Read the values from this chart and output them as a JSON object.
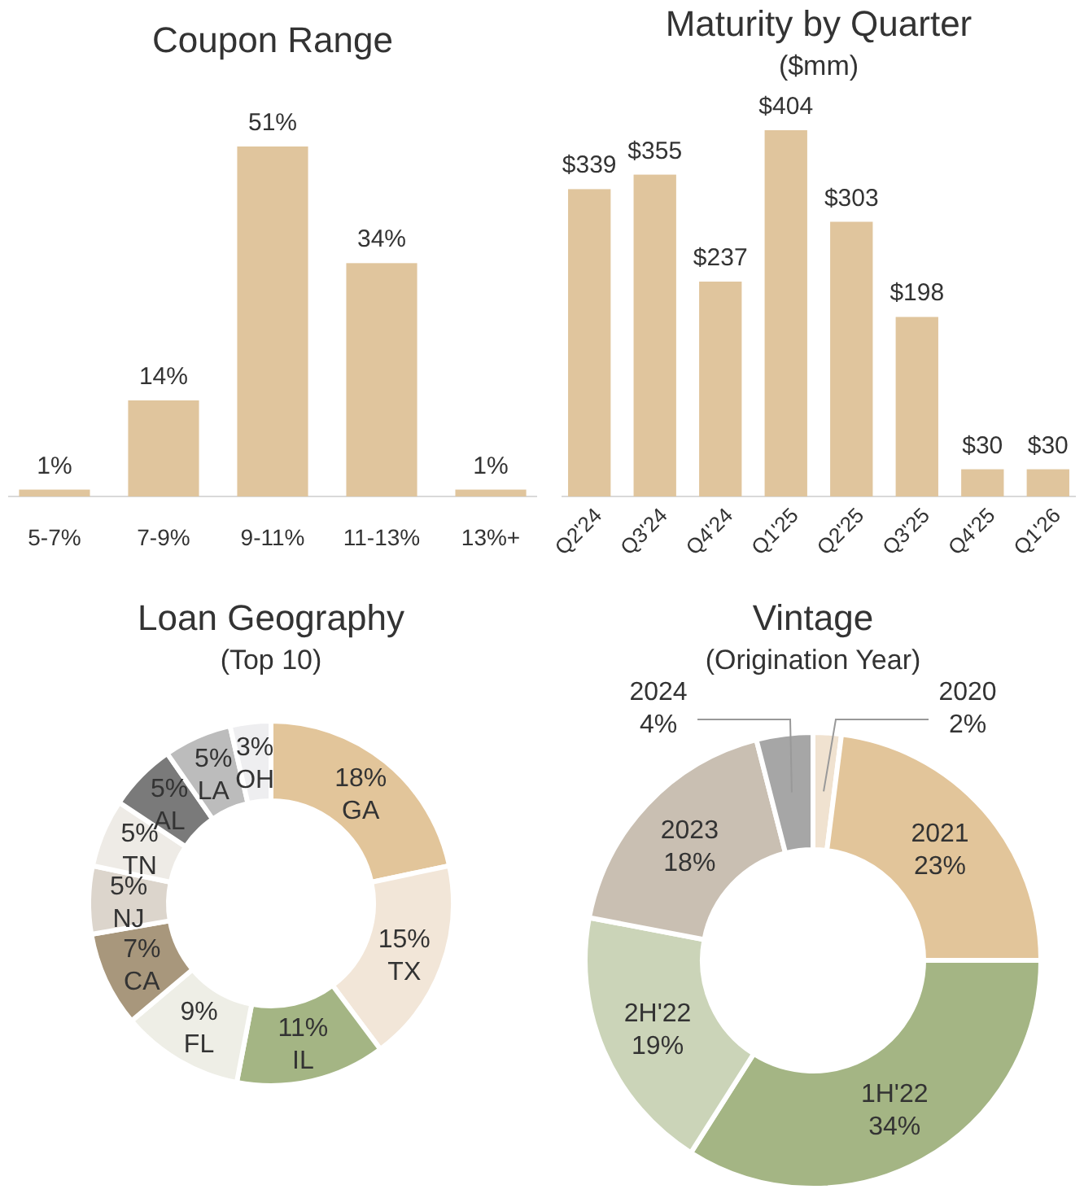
{
  "chart_data": [
    {
      "type": "bar",
      "title": "Coupon Range",
      "categories": [
        "5-7%",
        "7-9%",
        "9-11%",
        "11-13%",
        "13%+"
      ],
      "values": [
        1,
        14,
        51,
        34,
        1
      ],
      "value_labels": [
        "1%",
        "14%",
        "51%",
        "34%",
        "1%"
      ],
      "color": "#e0c59d"
    },
    {
      "type": "bar",
      "title": "Maturity by Quarter",
      "subtitle": "($mm)",
      "categories": [
        "Q2'24",
        "Q3'24",
        "Q4'24",
        "Q1'25",
        "Q2'25",
        "Q3'25",
        "Q4'25",
        "Q1'26"
      ],
      "values": [
        339,
        355,
        237,
        404,
        303,
        198,
        30,
        30
      ],
      "value_labels": [
        "$339",
        "$355",
        "$237",
        "$404",
        "$303",
        "$198",
        "$30",
        "$30"
      ],
      "color": "#e0c59d"
    },
    {
      "type": "donut",
      "title": "Loan Geography",
      "subtitle": "(Top 10)",
      "categories": [
        "GA",
        "TX",
        "IL",
        "FL",
        "CA",
        "NJ",
        "TN",
        "AL",
        "LA",
        "OH"
      ],
      "values": [
        18,
        15,
        11,
        9,
        7,
        5,
        5,
        5,
        5,
        3
      ],
      "value_labels": [
        "18%",
        "15%",
        "11%",
        "9%",
        "7%",
        "5%",
        "5%",
        "5%",
        "5%",
        "3%"
      ],
      "colors": [
        "#e2c59a",
        "#f2e6d8",
        "#a4b584",
        "#eeeee6",
        "#a8977c",
        "#dcd5cc",
        "#eeebe6",
        "#7a7a7a",
        "#bcbcbc",
        "#eeeef0"
      ]
    },
    {
      "type": "donut",
      "title": "Vintage",
      "subtitle": "(Origination Year)",
      "categories": [
        "2020",
        "2021",
        "1H'22",
        "2H'22",
        "2023",
        "2024"
      ],
      "values": [
        2,
        23,
        34,
        19,
        18,
        4
      ],
      "value_labels": [
        "2%",
        "23%",
        "34%",
        "19%",
        "18%",
        "4%"
      ],
      "colors": [
        "#f0e2d0",
        "#e2c59a",
        "#a4b584",
        "#cbd4b8",
        "#c9bfb2",
        "#a6a6a6"
      ]
    }
  ]
}
